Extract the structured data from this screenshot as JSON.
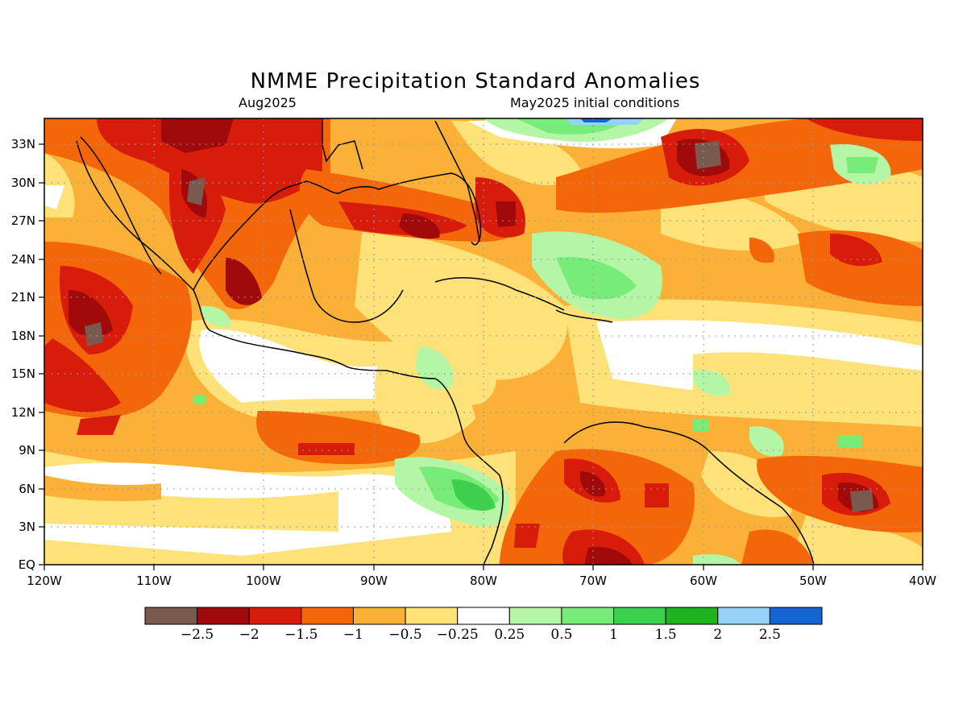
{
  "header": {
    "title": "NMME Precipitation Standard Anomalies",
    "valid_month": "Aug2025",
    "init": "May2025 initial conditions"
  },
  "axes": {
    "lon_labels": [
      "120W",
      "110W",
      "100W",
      "90W",
      "80W",
      "70W",
      "60W",
      "50W",
      "40W"
    ],
    "lat_labels": [
      "EQ",
      "3N",
      "6N",
      "9N",
      "12N",
      "15N",
      "18N",
      "21N",
      "24N",
      "27N",
      "30N",
      "33N"
    ]
  },
  "legend": {
    "labels": [
      "-2.5",
      "-2",
      "-1.5",
      "-1",
      "-0.5",
      "-0.25",
      "0.25",
      "0.5",
      "1",
      "1.5",
      "2",
      "2.5"
    ],
    "colors": [
      "#7a5a4e",
      "#a00a0a",
      "#d81c0c",
      "#f4660a",
      "#fbb138",
      "#fde27a",
      "#ffffff",
      "#b4f6a6",
      "#78ec78",
      "#3cd04c",
      "#1eb21e",
      "#96d2fa",
      "#1464d2"
    ]
  },
  "map": {
    "region": "Central America, Caribbean and western tropical Atlantic",
    "lon_range": [
      "120W",
      "40W"
    ],
    "lat_range": [
      "EQ",
      "35N"
    ]
  }
}
